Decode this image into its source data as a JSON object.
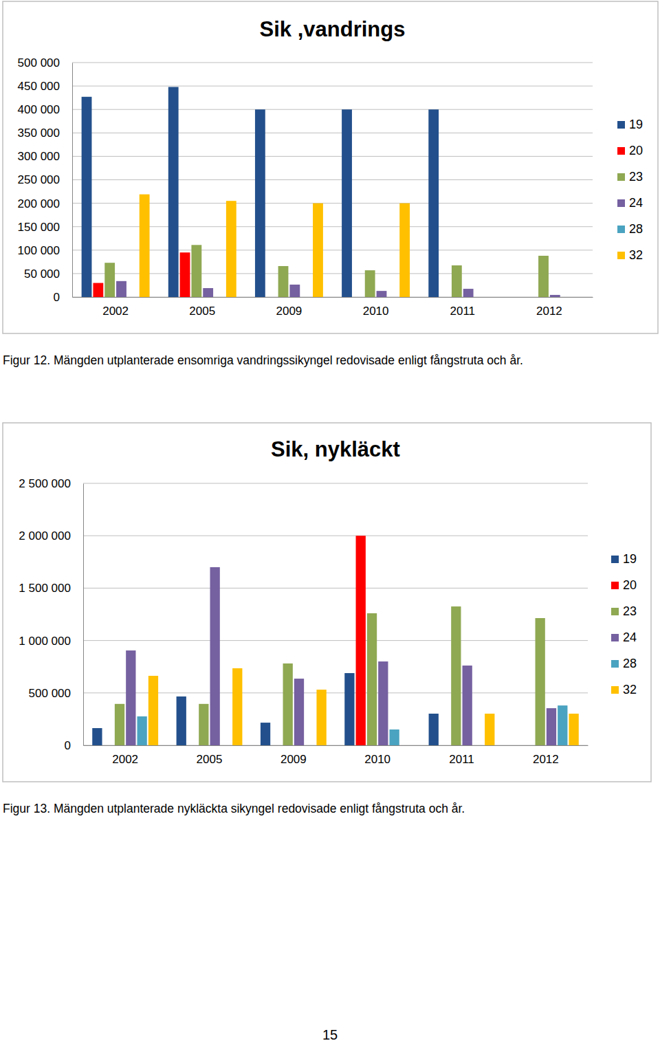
{
  "chart_data": [
    {
      "type": "bar",
      "title": "Sik ,vandrings",
      "categories": [
        "2002",
        "2005",
        "2009",
        "2010",
        "2011",
        "2012"
      ],
      "series": [
        {
          "name": "19",
          "color": "#23508c",
          "values": [
            427000,
            448000,
            400000,
            400000,
            400000,
            null
          ]
        },
        {
          "name": "20",
          "color": "#ff0000",
          "values": [
            30000,
            95000,
            null,
            null,
            null,
            null
          ]
        },
        {
          "name": "23",
          "color": "#8fa852",
          "values": [
            73000,
            111000,
            66000,
            57000,
            67500,
            88000
          ]
        },
        {
          "name": "24",
          "color": "#7560a0",
          "values": [
            34000,
            19000,
            26500,
            13000,
            17500,
            4500
          ]
        },
        {
          "name": "28",
          "color": "#4aa3c0",
          "values": [
            null,
            null,
            null,
            null,
            null,
            null
          ]
        },
        {
          "name": "32",
          "color": "#ffc000",
          "values": [
            219000,
            205000,
            200000,
            200000,
            null,
            null
          ]
        }
      ],
      "ylim": [
        0,
        500000
      ],
      "yticks": [
        0,
        {
          "value": 50000,
          "label": "50 000"
        },
        {
          "value": 100000,
          "label": "100 000"
        },
        {
          "value": 150000,
          "label": "150 000"
        },
        {
          "value": 200000,
          "label": "200 000"
        },
        {
          "value": 250000,
          "label": "250 000"
        },
        {
          "value": 300000,
          "label": "300 000"
        },
        {
          "value": 350000,
          "label": "350 000"
        },
        {
          "value": 400000,
          "label": "400 000"
        },
        {
          "value": 450000,
          "label": "450 000"
        },
        {
          "value": 500000,
          "label": "500 000"
        }
      ],
      "grid": true,
      "legend": "right"
    },
    {
      "type": "bar",
      "title": "Sik, nykläckt",
      "categories": [
        "2002",
        "2005",
        "2009",
        "2010",
        "2011",
        "2012"
      ],
      "series": [
        {
          "name": "19",
          "color": "#23508c",
          "values": [
            164000,
            466000,
            216000,
            689000,
            302000,
            null
          ]
        },
        {
          "name": "20",
          "color": "#ff0000",
          "values": [
            null,
            null,
            null,
            2000000,
            null,
            null
          ]
        },
        {
          "name": "23",
          "color": "#8fa852",
          "values": [
            395000,
            395000,
            781000,
            1260000,
            1325000,
            1214000
          ]
        },
        {
          "name": "24",
          "color": "#7560a0",
          "values": [
            905000,
            1700000,
            636000,
            800000,
            761000,
            354000
          ]
        },
        {
          "name": "28",
          "color": "#4aa3c0",
          "values": [
            276000,
            null,
            null,
            151000,
            null,
            380000
          ]
        },
        {
          "name": "32",
          "color": "#ffc000",
          "values": [
            663000,
            735000,
            531000,
            null,
            302000,
            302000
          ]
        }
      ],
      "ylim": [
        0,
        2500000
      ],
      "yticks": [
        0,
        {
          "value": 500000,
          "label": "500 000"
        },
        {
          "value": 1000000,
          "label": "1 000 000"
        },
        {
          "value": 1500000,
          "label": "1 500 000"
        },
        {
          "value": 2000000,
          "label": "2 000 000"
        },
        {
          "value": 2500000,
          "label": "2 500 000"
        }
      ],
      "grid": true,
      "legend": "right"
    }
  ],
  "captions": [
    "Figur 12. Mängden utplanterade ensomriga vandringssikyngel redovisade enligt fångstruta och år.",
    "Figur 13. Mängden utplanterade nykläckta sikyngel redovisade enligt fångstruta och år."
  ],
  "page_number": 15
}
